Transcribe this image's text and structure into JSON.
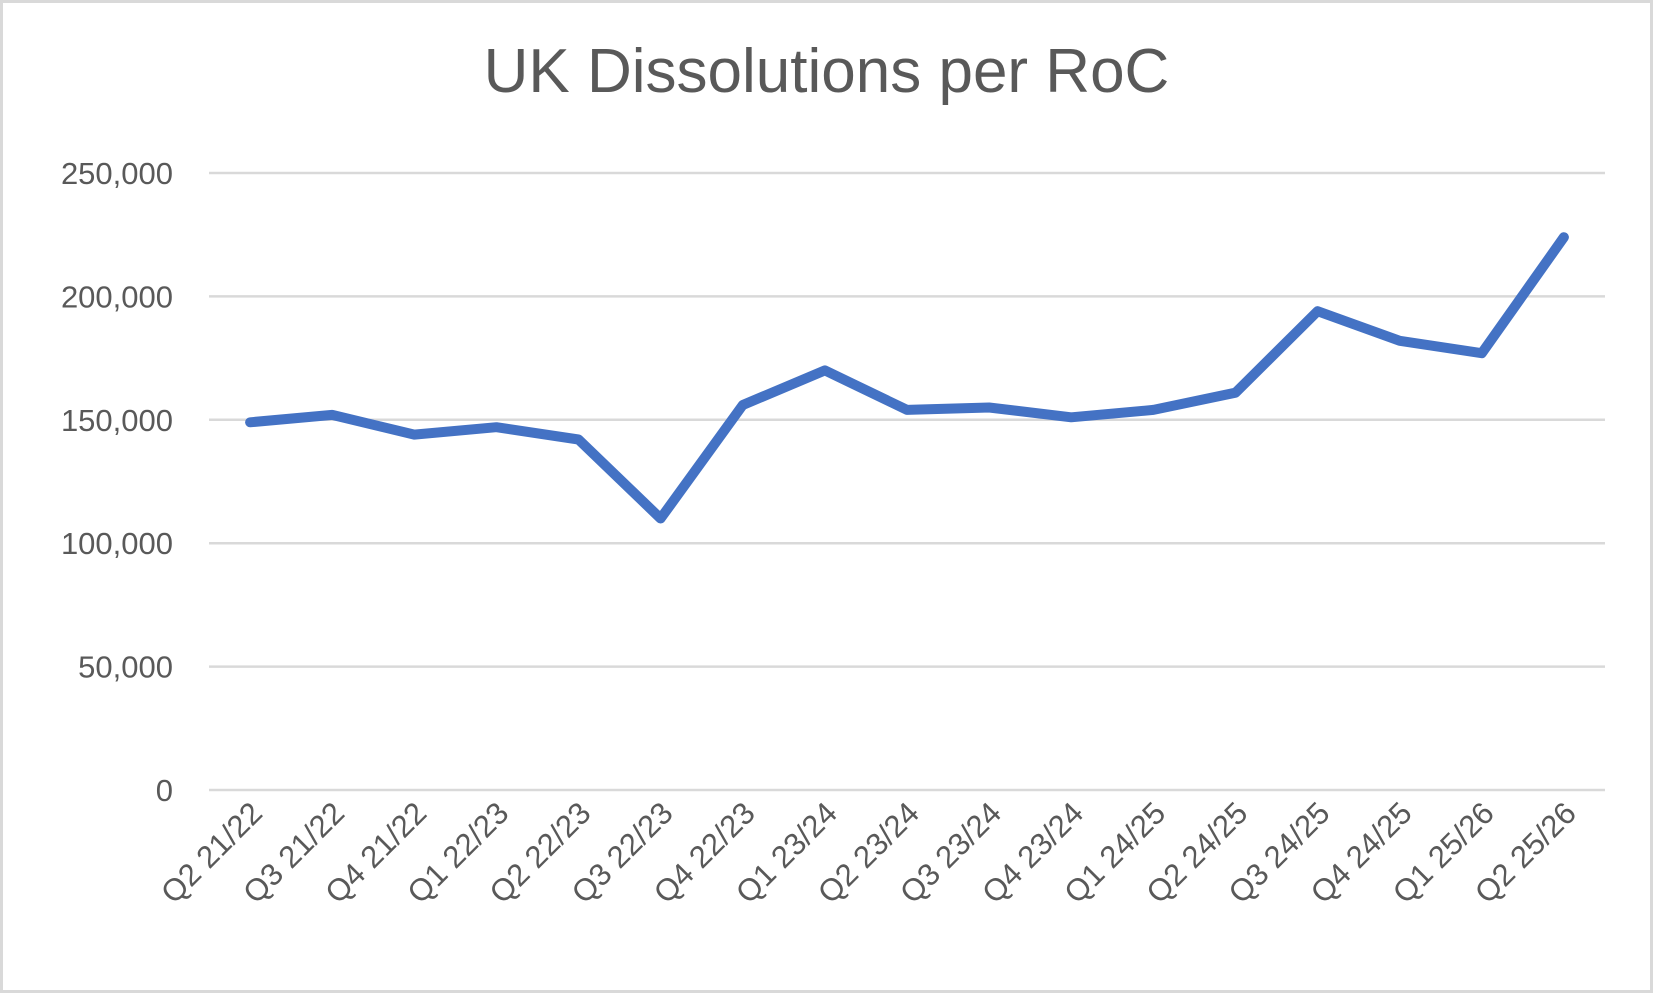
{
  "chart_data": {
    "type": "line",
    "title": "UK Dissolutions per RoC",
    "xlabel": "",
    "ylabel": "",
    "legend": "none",
    "grid": "horizontal",
    "ylim": [
      0,
      250000
    ],
    "y_ticks": [
      {
        "value": 0,
        "label": "0"
      },
      {
        "value": 50000,
        "label": "50,000"
      },
      {
        "value": 100000,
        "label": "100,000"
      },
      {
        "value": 150000,
        "label": "150,000"
      },
      {
        "value": 200000,
        "label": "200,000"
      },
      {
        "value": 250000,
        "label": "250,000"
      }
    ],
    "categories": [
      "Q2 21/22",
      "Q3 21/22",
      "Q4 21/22",
      "Q1 22/23",
      "Q2 22/23",
      "Q3 22/23",
      "Q4 22/23",
      "Q1 23/24",
      "Q2 23/24",
      "Q3 23/24",
      "Q4 23/24",
      "Q1 24/25",
      "Q2 24/25",
      "Q3 24/25",
      "Q4 24/25",
      "Q1 25/26",
      "Q2 25/26"
    ],
    "values": [
      149000,
      152000,
      144000,
      147000,
      142000,
      110000,
      156000,
      170000,
      154000,
      155000,
      151000,
      154000,
      161000,
      194000,
      182000,
      177000,
      224000
    ]
  },
  "colors": {
    "line": "#4472C4",
    "gridline": "#D9D9D9",
    "text": "#595959",
    "frame_border": "#D9D9D9",
    "background": "#FFFFFF"
  }
}
